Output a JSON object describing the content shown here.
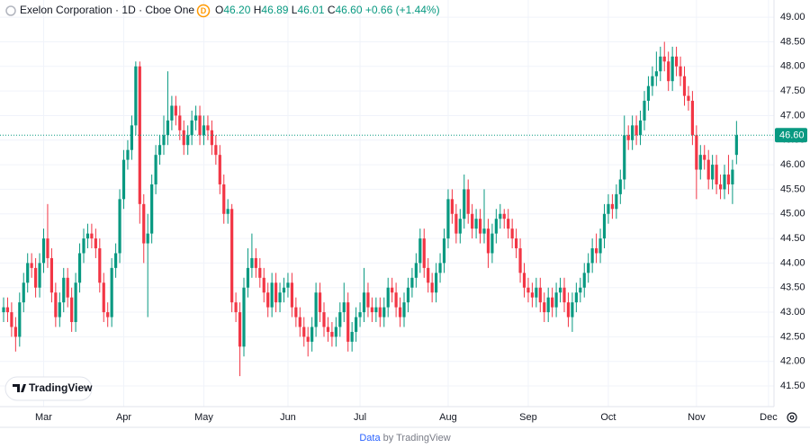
{
  "header": {
    "title": "Exelon Corporation · 1D · Cboe One",
    "badge": "D",
    "ohlc": [
      {
        "key": "O",
        "value": "46.20"
      },
      {
        "key": "H",
        "value": "46.89"
      },
      {
        "key": "L",
        "value": "46.01"
      },
      {
        "key": "C",
        "value": "46.60"
      }
    ],
    "change": "+0.66 (+1.44%)"
  },
  "logo": "TradingView",
  "footer": {
    "link": "Data",
    "text": "by TradingView"
  },
  "chart_data": {
    "type": "candlestick",
    "categories": [
      null,
      null,
      null,
      null,
      null,
      null,
      null,
      null,
      null,
      null,
      "Mar",
      null,
      null,
      null,
      null,
      null,
      null,
      null,
      null,
      null,
      null,
      null,
      null,
      null,
      null,
      null,
      null,
      null,
      null,
      null,
      "Apr",
      null,
      null,
      null,
      null,
      null,
      null,
      null,
      null,
      null,
      null,
      null,
      null,
      null,
      null,
      null,
      null,
      null,
      null,
      null,
      "May",
      null,
      null,
      null,
      null,
      null,
      null,
      null,
      null,
      null,
      null,
      null,
      null,
      null,
      null,
      null,
      null,
      null,
      null,
      null,
      null,
      "Jun",
      null,
      null,
      null,
      null,
      null,
      null,
      null,
      null,
      null,
      null,
      null,
      null,
      null,
      null,
      null,
      null,
      null,
      "Jul",
      null,
      null,
      null,
      null,
      null,
      null,
      null,
      null,
      null,
      null,
      null,
      null,
      null,
      null,
      null,
      null,
      null,
      null,
      null,
      null,
      null,
      "Aug",
      null,
      null,
      null,
      null,
      null,
      null,
      null,
      null,
      null,
      null,
      null,
      null,
      null,
      null,
      null,
      null,
      null,
      null,
      null,
      "Sep",
      null,
      null,
      null,
      null,
      null,
      null,
      null,
      null,
      null,
      null,
      null,
      null,
      null,
      null,
      null,
      null,
      null,
      null,
      null,
      "Oct",
      null,
      null,
      null,
      null,
      null,
      null,
      null,
      null,
      null,
      null,
      null,
      null,
      null,
      null,
      null,
      null,
      null,
      null,
      null,
      null,
      null,
      "Nov",
      null,
      null,
      null,
      null,
      null,
      null,
      null,
      null,
      null,
      null,
      null,
      null,
      null,
      null,
      null,
      null,
      null,
      "Dec"
    ],
    "open": [
      43.0,
      43.1,
      43.0,
      42.7,
      42.5,
      43.2,
      43.6,
      44.0,
      43.9,
      43.5,
      44.0,
      44.5,
      44.1,
      43.4,
      42.9,
      43.2,
      43.7,
      43.3,
      42.8,
      43.6,
      44.2,
      44.5,
      44.6,
      44.5,
      44.3,
      43.6,
      43.0,
      42.9,
      43.9,
      44.2,
      45.3,
      46.1,
      46.3,
      46.8,
      48.0,
      45.2,
      44.4,
      44.6,
      45.6,
      46.2,
      46.4,
      46.6,
      46.9,
      47.2,
      47.0,
      46.7,
      46.4,
      46.6,
      46.9,
      47.0,
      46.6,
      46.8,
      46.7,
      46.4,
      46.2,
      45.6,
      45.0,
      45.1,
      43.2,
      43.0,
      42.3,
      43.5,
      43.9,
      44.1,
      43.9,
      43.7,
      43.4,
      43.1,
      43.6,
      43.2,
      43.4,
      43.5,
      43.6,
      43.1,
      42.9,
      42.7,
      42.5,
      42.4,
      42.7,
      43.4,
      43.0,
      42.7,
      42.6,
      42.5,
      42.7,
      43.0,
      43.2,
      42.4,
      42.6,
      42.9,
      43.0,
      43.4,
      43.1,
      43.0,
      43.1,
      42.9,
      43.1,
      43.5,
      43.4,
      43.1,
      42.9,
      43.2,
      43.5,
      43.7,
      44.0,
      44.5,
      43.9,
      43.6,
      43.4,
      43.8,
      44.0,
      44.5,
      45.3,
      45.0,
      44.6,
      44.9,
      45.5,
      45.0,
      44.7,
      44.9,
      44.6,
      44.7,
      44.2,
      44.6,
      44.9,
      45.0,
      44.9,
      44.7,
      44.5,
      44.3,
      43.8,
      43.5,
      43.4,
      43.3,
      43.5,
      43.2,
      43.0,
      43.3,
      43.1,
      43.4,
      43.5,
      43.2,
      42.9,
      43.2,
      43.4,
      43.5,
      43.8,
      44.0,
      44.3,
      44.2,
      44.5,
      45.0,
      45.2,
      45.1,
      45.4,
      45.7,
      46.6,
      46.5,
      46.8,
      46.6,
      46.9,
      47.3,
      47.6,
      47.8,
      47.9,
      48.2,
      48.1,
      47.7,
      48.2,
      48.0,
      47.8,
      47.4,
      47.3,
      46.6,
      45.9,
      46.2,
      46.1,
      45.7,
      46.0,
      45.6,
      45.5,
      45.8,
      45.6,
      46.2,
      null,
      null,
      null,
      null,
      null,
      null,
      null,
      null
    ],
    "high": [
      43.3,
      43.3,
      43.2,
      42.9,
      43.4,
      43.8,
      44.2,
      44.2,
      44.1,
      44.2,
      44.7,
      45.2,
      44.3,
      43.6,
      43.4,
      43.9,
      43.9,
      43.5,
      43.8,
      44.4,
      44.7,
      44.8,
      44.8,
      44.7,
      44.5,
      43.8,
      43.2,
      44.1,
      44.4,
      45.5,
      46.3,
      46.5,
      47.0,
      48.1,
      48.1,
      45.4,
      45.0,
      45.8,
      46.4,
      46.6,
      47.0,
      47.9,
      47.4,
      47.4,
      47.2,
      46.9,
      46.8,
      47.1,
      47.2,
      47.2,
      47.0,
      47.0,
      46.9,
      46.6,
      46.4,
      45.8,
      45.3,
      45.2,
      43.4,
      43.2,
      43.7,
      44.3,
      44.6,
      44.3,
      44.1,
      43.9,
      43.6,
      43.8,
      43.8,
      43.6,
      43.7,
      43.8,
      43.8,
      43.3,
      43.1,
      42.9,
      42.7,
      42.9,
      43.6,
      43.6,
      43.2,
      42.9,
      42.8,
      42.9,
      43.2,
      43.6,
      43.4,
      42.8,
      43.1,
      43.2,
      43.9,
      43.6,
      43.3,
      43.3,
      43.3,
      43.3,
      43.7,
      43.7,
      43.6,
      43.3,
      43.4,
      43.7,
      43.9,
      44.2,
      44.7,
      44.7,
      44.1,
      43.8,
      44.0,
      44.2,
      44.7,
      45.5,
      45.5,
      45.2,
      45.1,
      45.8,
      45.7,
      45.2,
      45.1,
      45.1,
      45.5,
      44.9,
      44.8,
      45.1,
      45.2,
      45.1,
      45.1,
      44.9,
      44.7,
      44.5,
      44.0,
      43.7,
      43.6,
      43.7,
      43.7,
      43.4,
      43.5,
      43.5,
      43.6,
      43.7,
      43.7,
      43.4,
      43.4,
      43.6,
      43.7,
      44.0,
      44.2,
      44.5,
      44.6,
      44.7,
      45.2,
      45.4,
      45.4,
      45.6,
      45.9,
      47.0,
      46.8,
      47.0,
      47.0,
      47.1,
      47.5,
      47.8,
      48.0,
      48.3,
      48.4,
      48.5,
      48.3,
      48.4,
      48.4,
      48.2,
      48.0,
      47.6,
      47.5,
      46.8,
      46.4,
      46.4,
      46.3,
      46.2,
      46.2,
      45.8,
      46.0,
      46.2,
      46.1,
      46.89,
      null,
      null,
      null,
      null,
      null,
      null,
      null,
      null
    ],
    "low": [
      42.8,
      42.8,
      42.5,
      42.2,
      42.3,
      43.0,
      43.4,
      43.7,
      43.3,
      43.3,
      43.8,
      43.9,
      43.2,
      42.7,
      42.7,
      43.0,
      43.1,
      42.6,
      42.6,
      43.4,
      44.0,
      44.3,
      44.3,
      44.1,
      43.4,
      42.8,
      42.7,
      42.7,
      43.7,
      44.0,
      45.1,
      45.9,
      46.1,
      46.6,
      44.8,
      44.0,
      42.9,
      44.4,
      45.4,
      46.0,
      46.2,
      46.4,
      46.7,
      46.8,
      46.5,
      46.2,
      46.2,
      46.4,
      46.7,
      46.4,
      46.4,
      46.5,
      46.2,
      46.0,
      45.4,
      44.8,
      44.8,
      43.0,
      42.8,
      41.7,
      42.1,
      43.3,
      43.7,
      43.7,
      43.5,
      43.2,
      42.9,
      42.9,
      43.0,
      43.0,
      43.2,
      43.3,
      42.9,
      42.7,
      42.5,
      42.3,
      42.1,
      42.2,
      42.5,
      42.8,
      42.5,
      42.4,
      42.3,
      42.3,
      42.5,
      42.8,
      42.2,
      42.2,
      42.4,
      42.7,
      42.8,
      42.9,
      42.8,
      42.8,
      42.7,
      42.7,
      42.9,
      43.2,
      42.9,
      42.7,
      42.7,
      43.0,
      43.3,
      43.5,
      43.8,
      43.7,
      43.4,
      43.2,
      43.2,
      43.6,
      43.8,
      44.3,
      44.8,
      44.4,
      44.4,
      44.7,
      44.8,
      44.5,
      44.5,
      44.4,
      44.4,
      43.9,
      44.0,
      44.4,
      44.7,
      44.7,
      44.5,
      44.3,
      44.1,
      43.6,
      43.3,
      43.2,
      43.1,
      43.1,
      43.0,
      42.8,
      42.8,
      42.9,
      42.9,
      43.2,
      43.0,
      42.7,
      42.6,
      43.0,
      43.2,
      43.3,
      43.6,
      43.8,
      44.0,
      44.0,
      44.3,
      44.8,
      44.9,
      44.9,
      45.2,
      45.5,
      46.3,
      46.3,
      46.4,
      46.4,
      46.7,
      47.1,
      47.4,
      47.6,
      47.7,
      47.9,
      47.5,
      47.5,
      47.8,
      47.6,
      47.2,
      47.1,
      46.4,
      45.3,
      45.7,
      45.9,
      45.5,
      45.5,
      45.4,
      45.3,
      45.3,
      45.4,
      45.2,
      46.01,
      null,
      null,
      null,
      null,
      null,
      null,
      null,
      null
    ],
    "close": [
      43.1,
      43.0,
      42.7,
      42.5,
      43.2,
      43.6,
      44.0,
      43.9,
      43.5,
      44.0,
      44.5,
      44.1,
      43.4,
      42.9,
      43.2,
      43.7,
      43.3,
      42.8,
      43.6,
      44.2,
      44.5,
      44.6,
      44.5,
      44.3,
      43.6,
      43.0,
      42.9,
      43.9,
      44.2,
      45.3,
      46.1,
      46.3,
      46.8,
      48.0,
      45.2,
      44.4,
      44.6,
      45.6,
      46.2,
      46.4,
      46.6,
      46.9,
      47.2,
      47.0,
      46.7,
      46.4,
      46.6,
      46.9,
      47.0,
      46.6,
      46.8,
      46.7,
      46.4,
      46.2,
      45.6,
      45.0,
      45.1,
      43.2,
      43.0,
      42.3,
      43.5,
      43.9,
      44.1,
      43.9,
      43.7,
      43.4,
      43.1,
      43.6,
      43.2,
      43.4,
      43.5,
      43.6,
      43.1,
      42.9,
      42.7,
      42.5,
      42.4,
      42.7,
      43.4,
      43.0,
      42.7,
      42.6,
      42.5,
      42.7,
      43.0,
      43.2,
      42.4,
      42.6,
      42.9,
      43.0,
      43.4,
      43.1,
      43.0,
      43.1,
      42.9,
      43.1,
      43.5,
      43.4,
      43.1,
      42.9,
      43.2,
      43.5,
      43.7,
      44.0,
      44.5,
      43.9,
      43.6,
      43.4,
      43.8,
      44.0,
      44.5,
      45.3,
      45.0,
      44.6,
      44.9,
      45.5,
      45.0,
      44.7,
      44.9,
      44.6,
      44.7,
      44.2,
      44.6,
      44.9,
      45.0,
      44.9,
      44.7,
      44.5,
      44.3,
      43.8,
      43.5,
      43.4,
      43.3,
      43.5,
      43.2,
      43.0,
      43.3,
      43.1,
      43.4,
      43.5,
      43.2,
      42.9,
      43.2,
      43.4,
      43.5,
      43.8,
      44.0,
      44.3,
      44.2,
      44.5,
      45.0,
      45.2,
      45.1,
      45.4,
      45.7,
      46.6,
      46.5,
      46.8,
      46.6,
      46.9,
      47.3,
      47.6,
      47.8,
      47.9,
      48.2,
      48.1,
      47.7,
      48.2,
      48.0,
      47.8,
      47.4,
      47.3,
      46.6,
      45.9,
      46.2,
      46.1,
      45.7,
      46.0,
      45.6,
      45.5,
      45.8,
      45.6,
      45.9,
      46.6,
      null,
      null,
      null,
      null,
      null,
      null,
      null,
      null
    ],
    "up_color": "#089981",
    "down_color": "#f23645",
    "last_price": {
      "value": 46.6,
      "label": "46.60"
    },
    "ylim": [
      41.08,
      49.35
    ],
    "yticks": [
      {
        "value": 41.5,
        "label": "41.50"
      },
      {
        "value": 42,
        "label": "42.00"
      },
      {
        "value": 42.5,
        "label": "42.50"
      },
      {
        "value": 43,
        "label": "43.00"
      },
      {
        "value": 43.5,
        "label": "43.50"
      },
      {
        "value": 44,
        "label": "44.00"
      },
      {
        "value": 44.5,
        "label": "44.50"
      },
      {
        "value": 45,
        "label": "45.00"
      },
      {
        "value": 45.5,
        "label": "45.50"
      },
      {
        "value": 46,
        "label": "46.00"
      },
      {
        "value": 46.5,
        "label": "46.50"
      },
      {
        "value": 47,
        "label": "47.00"
      },
      {
        "value": 47.5,
        "label": "47.50"
      },
      {
        "value": 48,
        "label": "48.00"
      },
      {
        "value": 48.5,
        "label": "48.50"
      },
      {
        "value": 49,
        "label": "49.00"
      }
    ],
    "grid": true
  }
}
